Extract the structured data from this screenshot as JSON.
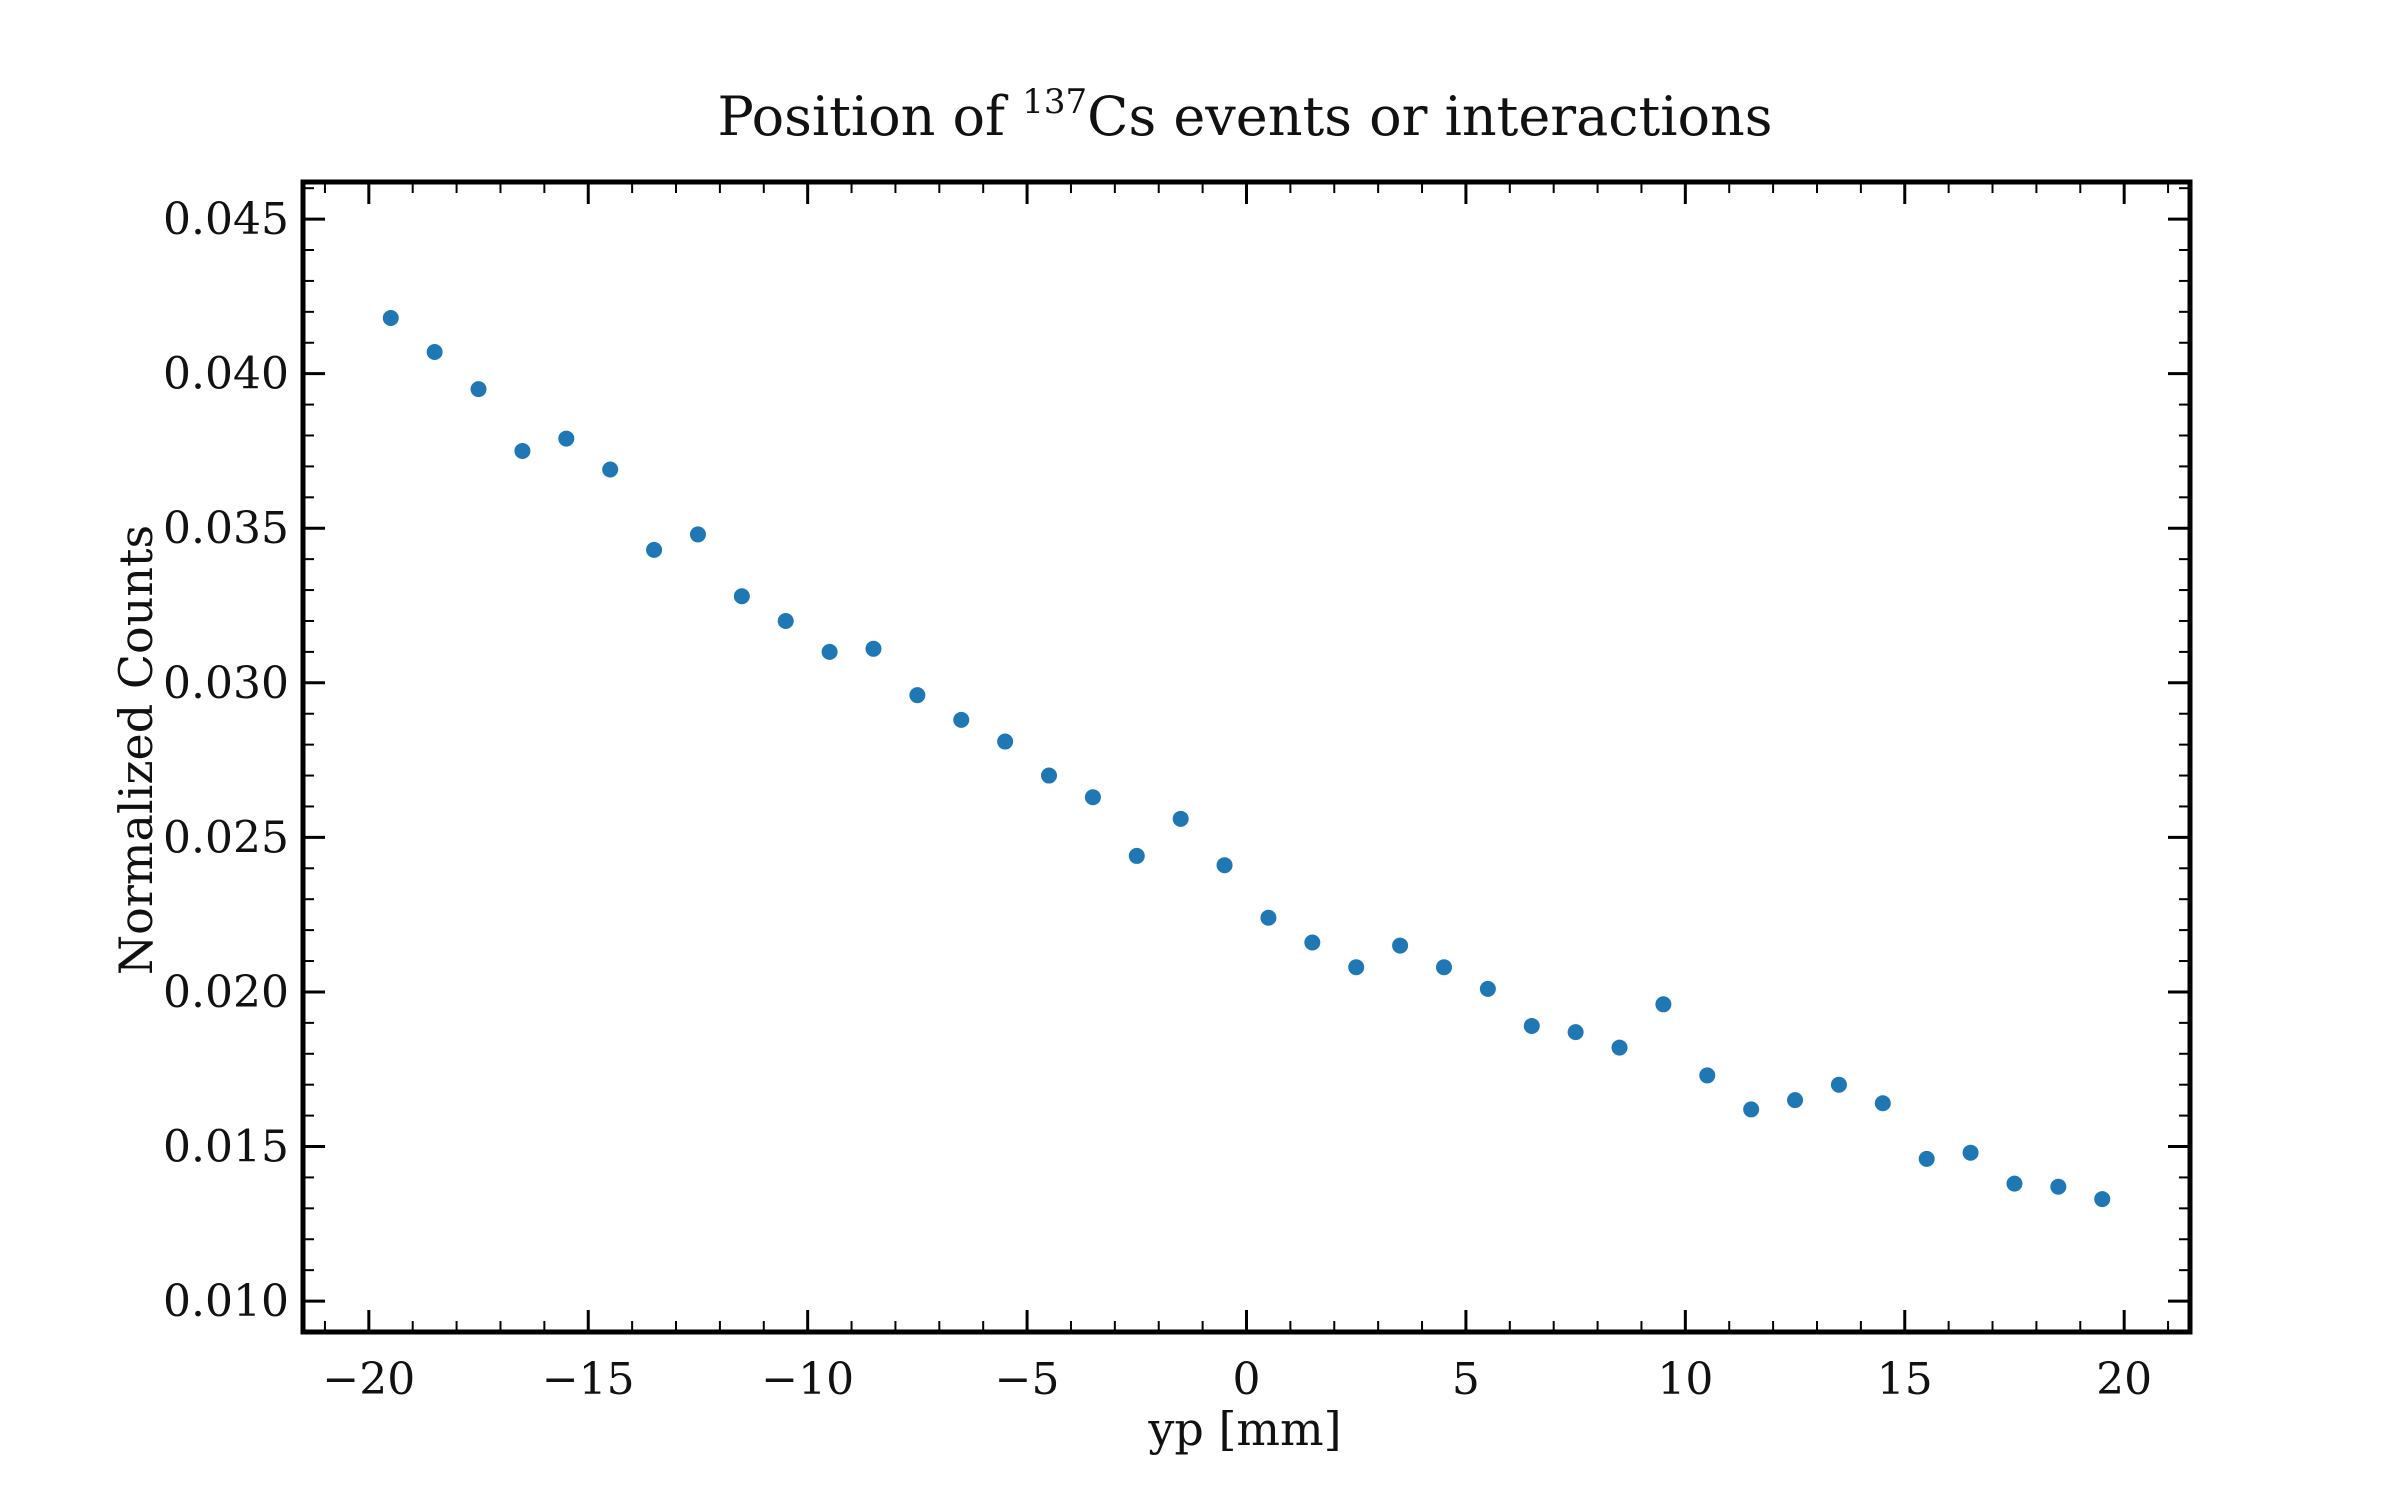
{
  "chart_data": {
    "type": "scatter",
    "title": {
      "prefix": "Position of ",
      "superscript": "137",
      "suffix": "Cs events or interactions"
    },
    "xlabel": "yp [mm]",
    "ylabel": "Normalized Counts",
    "xlim": [
      -21.5,
      21.5
    ],
    "ylim": [
      0.009,
      0.0462
    ],
    "grid": false,
    "legend": null,
    "marker_color": "#1f77b4",
    "x_ticks": [
      -20,
      -15,
      -10,
      -5,
      0,
      5,
      10,
      15,
      20
    ],
    "x_tick_labels": [
      "−20",
      "−15",
      "−10",
      "−5",
      "0",
      "5",
      "10",
      "15",
      "20"
    ],
    "y_ticks": [
      0.01,
      0.015,
      0.02,
      0.025,
      0.03,
      0.035,
      0.04,
      0.045
    ],
    "y_tick_labels": [
      "0.010",
      "0.015",
      "0.020",
      "0.025",
      "0.030",
      "0.035",
      "0.040",
      "0.045"
    ],
    "x": [
      -19.5,
      -18.5,
      -17.5,
      -16.5,
      -15.5,
      -14.5,
      -13.5,
      -12.5,
      -11.5,
      -10.5,
      -9.5,
      -8.5,
      -7.5,
      -6.5,
      -5.5,
      -4.5,
      -3.5,
      -2.5,
      -1.5,
      -0.5,
      0.5,
      1.5,
      2.5,
      3.5,
      4.5,
      5.5,
      6.5,
      7.5,
      8.5,
      9.5,
      10.5,
      11.5,
      12.5,
      13.5,
      14.5,
      15.5,
      16.5,
      17.5,
      18.5,
      19.5
    ],
    "y": [
      0.0418,
      0.0407,
      0.0395,
      0.0375,
      0.0379,
      0.0369,
      0.0343,
      0.0348,
      0.0328,
      0.032,
      0.031,
      0.0311,
      0.0296,
      0.0288,
      0.0281,
      0.027,
      0.0263,
      0.0244,
      0.0256,
      0.0241,
      0.0224,
      0.0216,
      0.0208,
      0.0215,
      0.0208,
      0.0201,
      0.0189,
      0.0187,
      0.0182,
      0.0196,
      0.0173,
      0.0162,
      0.0165,
      0.017,
      0.0164,
      0.0146,
      0.0148,
      0.0138,
      0.0137,
      0.0133
    ]
  }
}
